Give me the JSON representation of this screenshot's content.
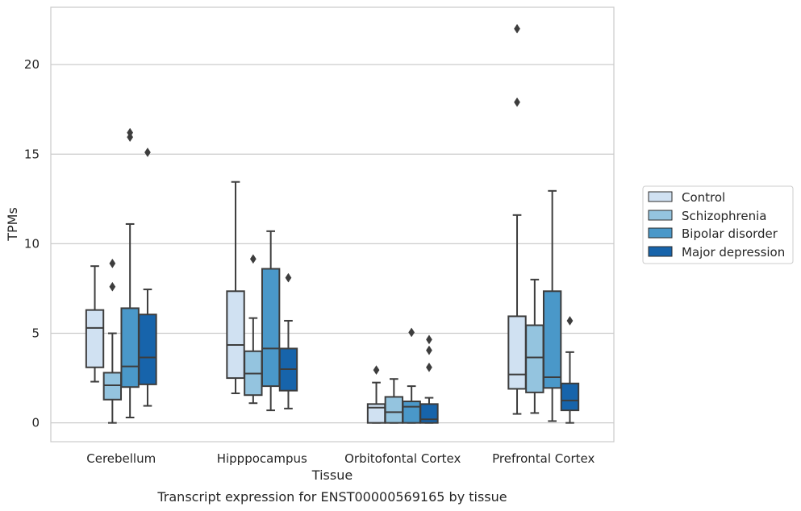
{
  "chart_data": {
    "type": "boxplot",
    "caption": "Transcript expression for ENST00000569165 by tissue",
    "xlabel": "Tissue",
    "ylabel": "TPMs",
    "ylim": [
      -1.05,
      23.2
    ],
    "yticks": [
      0,
      5,
      10,
      15,
      20
    ],
    "grid": "horizontal",
    "legend_position": "right",
    "categories": [
      "Cerebellum",
      "Hipppocampus",
      "Orbitofontal Cortex",
      "Prefrontal Cortex"
    ],
    "series": [
      {
        "name": "Control",
        "color": "#d0e1f2",
        "boxes": [
          {
            "whislo": 2.3,
            "q1": 3.1,
            "med": 5.3,
            "q3": 6.3,
            "whishi": 8.75,
            "fliers": []
          },
          {
            "whislo": 1.65,
            "q1": 2.5,
            "med": 4.35,
            "q3": 7.35,
            "whishi": 13.45,
            "fliers": []
          },
          {
            "whislo": 0.0,
            "q1": 0.0,
            "med": 0.85,
            "q3": 1.05,
            "whishi": 2.25,
            "fliers": [
              2.95
            ]
          },
          {
            "whislo": 0.5,
            "q1": 1.9,
            "med": 2.7,
            "q3": 5.95,
            "whishi": 11.6,
            "fliers": [
              17.9,
              22.0
            ]
          }
        ]
      },
      {
        "name": "Schizophrenia",
        "color": "#94c4df",
        "boxes": [
          {
            "whislo": 0.0,
            "q1": 1.3,
            "med": 2.1,
            "q3": 2.8,
            "whishi": 5.0,
            "fliers": [
              7.6,
              8.9
            ]
          },
          {
            "whislo": 1.1,
            "q1": 1.55,
            "med": 2.75,
            "q3": 4.0,
            "whishi": 5.85,
            "fliers": [
              9.15
            ]
          },
          {
            "whislo": 0.0,
            "q1": 0.0,
            "med": 0.6,
            "q3": 1.45,
            "whishi": 2.45,
            "fliers": []
          },
          {
            "whislo": 0.55,
            "q1": 1.7,
            "med": 3.65,
            "q3": 5.45,
            "whishi": 8.0,
            "fliers": []
          }
        ]
      },
      {
        "name": "Bipolar disorder",
        "color": "#4a98c9",
        "boxes": [
          {
            "whislo": 0.3,
            "q1": 2.0,
            "med": 3.15,
            "q3": 6.4,
            "whishi": 11.1,
            "fliers": [
              15.95,
              16.2
            ]
          },
          {
            "whislo": 0.7,
            "q1": 2.05,
            "med": 4.15,
            "q3": 8.6,
            "whishi": 10.7,
            "fliers": []
          },
          {
            "whislo": 0.0,
            "q1": 0.0,
            "med": 0.9,
            "q3": 1.2,
            "whishi": 2.05,
            "fliers": [
              5.05
            ]
          },
          {
            "whislo": 0.1,
            "q1": 1.95,
            "med": 2.55,
            "q3": 7.35,
            "whishi": 12.95,
            "fliers": []
          }
        ]
      },
      {
        "name": "Major depression",
        "color": "#1764ab",
        "boxes": [
          {
            "whislo": 0.95,
            "q1": 2.15,
            "med": 3.65,
            "q3": 6.05,
            "whishi": 7.45,
            "fliers": [
              15.1
            ]
          },
          {
            "whislo": 0.8,
            "q1": 1.8,
            "med": 3.0,
            "q3": 4.15,
            "whishi": 5.7,
            "fliers": [
              8.1
            ]
          },
          {
            "whislo": 0.0,
            "q1": 0.0,
            "med": 0.2,
            "q3": 1.05,
            "whishi": 1.4,
            "fliers": [
              3.1,
              4.05,
              4.65
            ]
          },
          {
            "whislo": 0.0,
            "q1": 0.7,
            "med": 1.25,
            "q3": 2.2,
            "whishi": 3.95,
            "fliers": [
              5.7
            ]
          }
        ]
      }
    ]
  }
}
